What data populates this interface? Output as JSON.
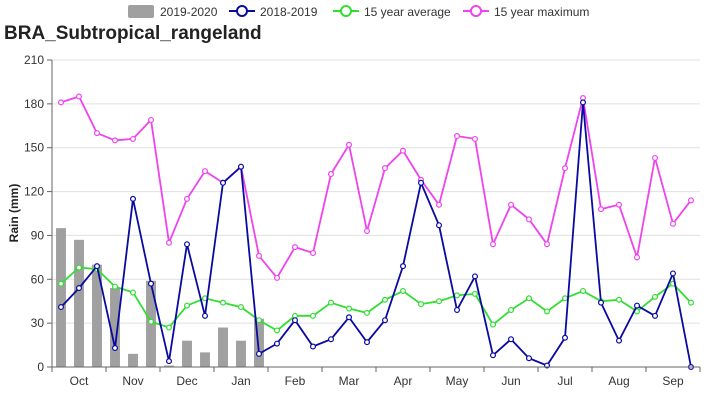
{
  "chart_data": {
    "type": "bar+line",
    "title": "BRA_Subtropical_rangeland",
    "ylabel": "Rain (mm)",
    "ylim": [
      0,
      210
    ],
    "yticks": [
      0,
      30,
      60,
      90,
      120,
      150,
      180,
      210
    ],
    "month_labels": [
      "Oct",
      "Nov",
      "Dec",
      "Jan",
      "Feb",
      "Mar",
      "Apr",
      "May",
      "Jun",
      "Jul",
      "Aug",
      "Sep"
    ],
    "grid": "horizontal",
    "legend_position": "top",
    "bar_series": {
      "name": "2019-2020",
      "color": "#a0a0a0",
      "values": [
        95,
        87,
        70,
        54,
        9,
        59,
        1,
        18,
        10,
        27,
        18,
        33
      ]
    },
    "line_series": [
      {
        "name": "2018-2019",
        "color": "#0a0aa0",
        "values": [
          41,
          54,
          69,
          13,
          115,
          57,
          4,
          84,
          35,
          126,
          137,
          9,
          16,
          32,
          14,
          19,
          34,
          17,
          32,
          69,
          126,
          97,
          39,
          62,
          8,
          19,
          6,
          1,
          20,
          181,
          44,
          18,
          42,
          35,
          64,
          0
        ]
      },
      {
        "name": "15 year average",
        "color": "#33dd33",
        "values": [
          57,
          68,
          67,
          55,
          51,
          31,
          27,
          42,
          47,
          44,
          41,
          32,
          25,
          35,
          35,
          44,
          40,
          37,
          46,
          52,
          43,
          45,
          49,
          50,
          29,
          39,
          47,
          38,
          47,
          52,
          45,
          46,
          38,
          48,
          57,
          44
        ]
      },
      {
        "name": "15 year maximum",
        "color": "#ee44ee",
        "values": [
          181,
          185,
          160,
          155,
          156,
          169,
          85,
          115,
          134,
          126,
          137,
          76,
          61,
          82,
          78,
          132,
          152,
          93,
          136,
          148,
          128,
          111,
          158,
          156,
          84,
          111,
          101,
          84,
          136,
          184,
          108,
          111,
          75,
          143,
          98,
          114
        ]
      }
    ]
  }
}
